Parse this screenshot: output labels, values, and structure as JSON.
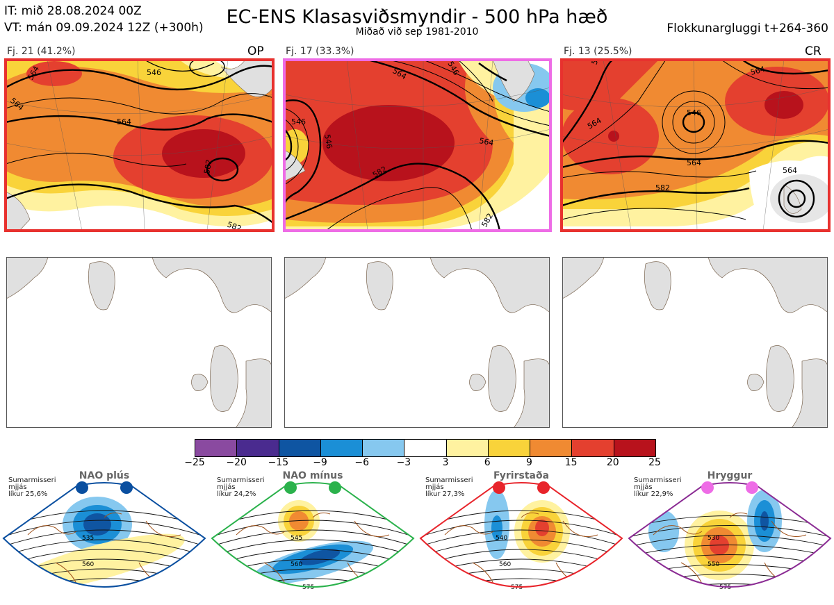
{
  "header": {
    "it_line": "IT: mið 28.08.2024 00Z",
    "vt_line": "VT: mán 09.09.2024 12Z  (+300h)",
    "title": "EC-ENS Klasasviðsmyndir - 500 hPa hæð",
    "subtitle": "Miðað við sep 1981-2010",
    "window": "Flokkunargluggi t+264-360"
  },
  "clusters": [
    {
      "label": "Fj. 21 (41.2%)",
      "tag": "OP",
      "frame_color": "#e8312e",
      "contours": [
        "546",
        "564",
        "564",
        "564",
        "582",
        "582"
      ]
    },
    {
      "label": "Fj. 17 (33.3%)",
      "tag": "",
      "frame_color": "#ee6ce6",
      "contours": [
        "564",
        "546",
        "546",
        "564",
        "582",
        "582",
        "546"
      ]
    },
    {
      "label": "Fj. 13 (25.5%)",
      "tag": "CR",
      "frame_color": "#e8312e",
      "contours": [
        "546",
        "564",
        "564",
        "546",
        "564",
        "564",
        "582"
      ]
    }
  ],
  "colorbar": {
    "ticks": [
      "−25",
      "−20",
      "−15",
      "−9",
      "−6",
      "−3",
      "3",
      "6",
      "9",
      "15",
      "20",
      "25"
    ],
    "colors": [
      "#8a4aa0",
      "#4a2b8f",
      "#0f55a2",
      "#1b8fd6",
      "#86c8ef",
      "#ffffff",
      "#fff2a0",
      "#f9d33a",
      "#f08a32",
      "#e4402f",
      "#b8121c"
    ]
  },
  "regimes": [
    {
      "title": "NAO plús",
      "note": [
        "Sumarmisseri",
        "mjjás",
        "líkur 25,6%"
      ],
      "dot_color": "#0a4fa0",
      "frame_color": "#0a4fa0",
      "contours": [
        "535",
        "560"
      ]
    },
    {
      "title": "NAO mínus",
      "note": [
        "Sumarmisseri",
        "mjjás",
        "líkur 24,2%"
      ],
      "dot_color": "#2bb24c",
      "frame_color": "#2bb24c",
      "contours": [
        "545",
        "560",
        "575"
      ]
    },
    {
      "title": "Fyrirstaða",
      "note": [
        "Sumarmisseri",
        "mjjás",
        "líkur 27,3%"
      ],
      "dot_color": "#e8242b",
      "frame_color": "#e8242b",
      "contours": [
        "540",
        "560",
        "575"
      ]
    },
    {
      "title": "Hryggur",
      "note": [
        "Sumarmisseri",
        "mjjás",
        "líkur 22,9%"
      ],
      "dot_color": "#ee6ce6",
      "frame_color": "#8b2c94",
      "contours": [
        "530",
        "550",
        "575"
      ]
    }
  ]
}
